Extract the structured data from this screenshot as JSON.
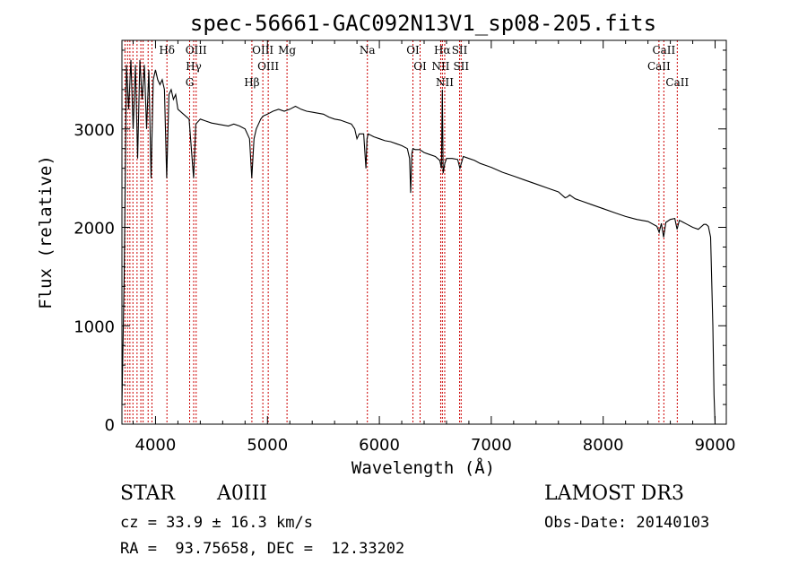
{
  "chart_data": {
    "type": "line",
    "title": "spec-56661-GAC092N13V1_sp08-205.fits",
    "xlabel": "Wavelength (Å)",
    "ylabel": "Flux (relative)",
    "xlim": [
      3700,
      9100
    ],
    "ylim": [
      0,
      3900
    ],
    "xticks": [
      4000,
      5000,
      6000,
      7000,
      8000,
      9000
    ],
    "xtick_labels": [
      "4000",
      "5000",
      "6000",
      "7000",
      "8000",
      "9000"
    ],
    "yticks": [
      0,
      1000,
      2000,
      3000
    ],
    "ytick_labels": [
      "0",
      "1000",
      "2000",
      "3000"
    ],
    "grid": false,
    "line_color": "#000000",
    "marker_color": "#cc0000",
    "spectrum": {
      "name": "flux",
      "x": [
        3700,
        3720,
        3740,
        3760,
        3780,
        3800,
        3820,
        3840,
        3860,
        3880,
        3900,
        3920,
        3940,
        3960,
        3980,
        4000,
        4020,
        4040,
        4060,
        4080,
        4100,
        4120,
        4140,
        4160,
        4180,
        4200,
        4250,
        4300,
        4340,
        4360,
        4400,
        4450,
        4500,
        4550,
        4600,
        4650,
        4700,
        4750,
        4800,
        4840,
        4860,
        4880,
        4900,
        4920,
        4940,
        4960,
        5000,
        5050,
        5100,
        5150,
        5200,
        5250,
        5300,
        5350,
        5400,
        5450,
        5500,
        5550,
        5600,
        5650,
        5700,
        5750,
        5780,
        5800,
        5820,
        5860,
        5880,
        5890,
        5900,
        5950,
        6000,
        6050,
        6100,
        6150,
        6200,
        6250,
        6270,
        6280,
        6290,
        6300,
        6320,
        6360,
        6400,
        6450,
        6500,
        6540,
        6555,
        6563,
        6570,
        6585,
        6600,
        6650,
        6700,
        6720,
        6750,
        6800,
        6850,
        6900,
        6950,
        7000,
        7100,
        7200,
        7300,
        7400,
        7500,
        7600,
        7660,
        7680,
        7700,
        7750,
        7800,
        7900,
        8000,
        8100,
        8200,
        8300,
        8400,
        8480,
        8500,
        8520,
        8540,
        8560,
        8600,
        8640,
        8660,
        8680,
        8700,
        8750,
        8800,
        8850,
        8900,
        8920,
        8940,
        8960,
        8980,
        8990,
        9000
      ],
      "values": [
        200,
        1500,
        3650,
        3200,
        3700,
        3000,
        3650,
        2700,
        3700,
        3300,
        3650,
        3000,
        3600,
        2500,
        3500,
        3600,
        3500,
        3450,
        3500,
        3400,
        2500,
        3350,
        3400,
        3300,
        3350,
        3200,
        3150,
        3100,
        2500,
        3050,
        3100,
        3080,
        3060,
        3050,
        3040,
        3030,
        3050,
        3030,
        3000,
        2900,
        2500,
        2900,
        3000,
        3050,
        3100,
        3130,
        3150,
        3180,
        3200,
        3180,
        3200,
        3230,
        3200,
        3180,
        3170,
        3160,
        3150,
        3120,
        3100,
        3090,
        3070,
        3050,
        3000,
        2900,
        2950,
        2950,
        2600,
        2900,
        2950,
        2920,
        2900,
        2880,
        2870,
        2850,
        2830,
        2800,
        2700,
        2350,
        2750,
        2800,
        2790,
        2790,
        2760,
        2740,
        2720,
        2680,
        2600,
        3400,
        2550,
        2650,
        2700,
        2700,
        2690,
        2600,
        2720,
        2700,
        2680,
        2650,
        2630,
        2610,
        2560,
        2520,
        2480,
        2440,
        2400,
        2360,
        2300,
        2310,
        2330,
        2290,
        2270,
        2230,
        2190,
        2150,
        2110,
        2080,
        2060,
        2010,
        1950,
        2040,
        1900,
        2050,
        2080,
        2090,
        1980,
        2070,
        2060,
        2030,
        2000,
        1980,
        2030,
        2030,
        2010,
        1900,
        1000,
        300,
        0
      ]
    },
    "line_markers": [
      {
        "label": "Hδ",
        "wavelength": 4102
      },
      {
        "label": "OIII",
        "wavelength": 4363
      },
      {
        "label": "Hγ",
        "wavelength": 4341
      },
      {
        "label": "G",
        "wavelength": 4305
      },
      {
        "label": "OIII",
        "wavelength": 4959
      },
      {
        "label": "OIII",
        "wavelength": 5007
      },
      {
        "label": "Hβ",
        "wavelength": 4861
      },
      {
        "label": "Mg",
        "wavelength": 5175
      },
      {
        "label": "Na",
        "wavelength": 5893
      },
      {
        "label": "OI",
        "wavelength": 6300
      },
      {
        "label": "OI",
        "wavelength": 6364
      },
      {
        "label": "Hα",
        "wavelength": 6563
      },
      {
        "label": "SII",
        "wavelength": 6717
      },
      {
        "label": "NII",
        "wavelength": 6548
      },
      {
        "label": "NII",
        "wavelength": 6584
      },
      {
        "label": "SII",
        "wavelength": 6731
      },
      {
        "label": "CaII",
        "wavelength": 8542
      },
      {
        "label": "CaII",
        "wavelength": 8498
      },
      {
        "label": "CaII",
        "wavelength": 8662
      }
    ],
    "crowded_marker_wavelengths": [
      3727,
      3750,
      3771,
      3798,
      3835,
      3869,
      3889,
      3934,
      3968
    ]
  },
  "info": {
    "object_type": "STAR",
    "subclass": "A0III",
    "survey": "LAMOST DR3",
    "redshift": "cz = 33.9 ± 16.3 km/s",
    "obs_date": "Obs-Date: 20140103",
    "coords": "RA =  93.75658, DEC =  12.33202"
  }
}
